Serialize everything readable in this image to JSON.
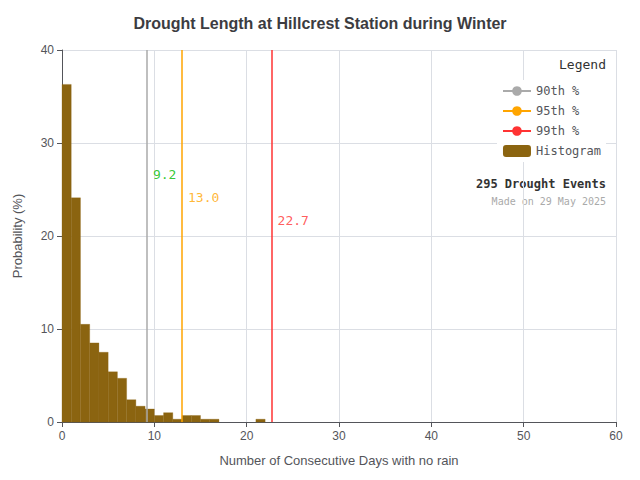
{
  "chart_data": {
    "type": "histogram",
    "title": "Drought Length at Hillcrest Station during Winter",
    "xlabel": "Number of Consecutive Days with no rain",
    "ylabel": "Probability (%)",
    "xlim": [
      0,
      60
    ],
    "ylim": [
      0,
      40
    ],
    "xticks": [
      0,
      10,
      20,
      30,
      40,
      50,
      60
    ],
    "yticks": [
      0,
      10,
      20,
      30,
      40
    ],
    "grid": true,
    "legend": "upper right",
    "legend_title": "Legend",
    "bins": [
      0,
      1,
      2,
      3,
      4,
      5,
      6,
      7,
      8,
      9,
      10,
      11,
      12,
      13,
      14,
      15,
      16,
      17,
      18,
      19,
      20,
      21,
      22,
      23,
      24,
      25,
      26,
      27,
      28,
      29,
      30,
      31,
      32,
      33,
      34,
      35,
      36,
      37,
      38,
      39,
      40,
      41,
      42,
      43,
      44,
      45,
      46,
      47,
      48,
      49,
      50,
      51,
      52,
      53,
      54,
      55,
      56,
      57,
      58,
      59,
      60
    ],
    "series": [
      {
        "name": "90th %",
        "type": "vline",
        "x": 9.2,
        "color": "#AAAAAA"
      },
      {
        "name": "95th %",
        "type": "vline",
        "x": 13.0,
        "color": "#FFA500"
      },
      {
        "name": "99th %",
        "type": "vline",
        "x": 22.7,
        "color": "#FF3333"
      },
      {
        "name": "Histogram",
        "type": "bar",
        "color": "#8B6410",
        "values": [
          36.3,
          24.1,
          10.5,
          8.5,
          7.5,
          5.4,
          4.7,
          2.4,
          1.7,
          1.4,
          0.7,
          1.0,
          0.3,
          0.7,
          0.7,
          0.3,
          0.3,
          0.0,
          0.0,
          0.0,
          0.0,
          0.3,
          0.0,
          0.0,
          0.0,
          0.0,
          0.0,
          0.0,
          0.0,
          0.0,
          0.0,
          0.0,
          0.0,
          0.0,
          0.0,
          0.0,
          0.0,
          0.0,
          0.0,
          0.0,
          0.0,
          0.0,
          0.0,
          0.0,
          0.0,
          0.0,
          0.0,
          0.0,
          0.0,
          0.0,
          0.0,
          0.0,
          0.0,
          0.0,
          0.0,
          0.0,
          0.0,
          0.0,
          0.0,
          0.0
        ]
      }
    ],
    "annotations": [
      {
        "text": "9.2",
        "x": 9.2,
        "y": 27.5,
        "color": "#00BB00"
      },
      {
        "text": "13.0",
        "x": 13.0,
        "y": 25.0,
        "color": "#FFA500"
      },
      {
        "text": "22.7",
        "x": 22.7,
        "y": 22.5,
        "color": "#FF3333"
      },
      {
        "text": "295 Drought Events"
      },
      {
        "text": "Made on 29 May 2025",
        "color": "#AAAAAA"
      }
    ]
  }
}
